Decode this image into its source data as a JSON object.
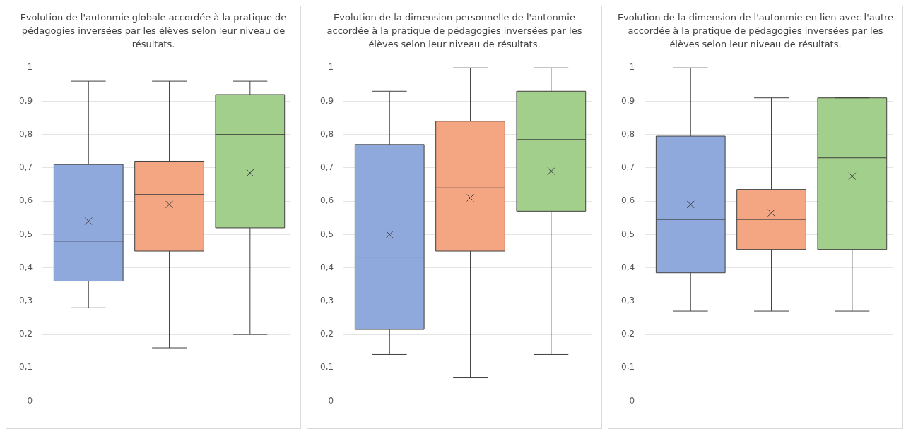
{
  "chart_data": [
    {
      "type": "box",
      "title": "Evolution de l'autonmie globale accordée à la pratique de pédagogies inversées par les élèves selon leur niveau de résultats.",
      "categories": [
        null,
        null,
        null
      ],
      "colors": [
        "#8fa9dd",
        "#f4a582",
        "#a3cf8c"
      ],
      "boxes": [
        {
          "low": 0.28,
          "q1": 0.36,
          "median": 0.48,
          "q3": 0.71,
          "high": 0.96,
          "mean": 0.54
        },
        {
          "low": 0.16,
          "q1": 0.45,
          "median": 0.62,
          "q3": 0.72,
          "high": 0.96,
          "mean": 0.59
        },
        {
          "low": 0.2,
          "q1": 0.52,
          "median": 0.8,
          "q3": 0.92,
          "high": 0.96,
          "mean": 0.685
        }
      ],
      "ylim": [
        0,
        1
      ],
      "yticks": [
        {
          "value": 0,
          "label": "0"
        },
        {
          "value": 0.1,
          "label": "0,1"
        },
        {
          "value": 0.2,
          "label": "0,2"
        },
        {
          "value": 0.3,
          "label": "0,3"
        },
        {
          "value": 0.4,
          "label": "0,4"
        },
        {
          "value": 0.5,
          "label": "0,5"
        },
        {
          "value": 0.6,
          "label": "0,6"
        },
        {
          "value": 0.7,
          "label": "0,7"
        },
        {
          "value": 0.8,
          "label": "0,8"
        },
        {
          "value": 0.9,
          "label": "0,9"
        },
        {
          "value": 1,
          "label": "1"
        }
      ],
      "grid": "y"
    },
    {
      "type": "box",
      "title": "Evolution de la dimension personnelle de l'autonmie accordée à la pratique de pédagogies inversées par les élèves selon leur niveau de résultats.",
      "categories": [
        null,
        null,
        null
      ],
      "colors": [
        "#8fa9dd",
        "#f4a582",
        "#a3cf8c"
      ],
      "boxes": [
        {
          "low": 0.14,
          "q1": 0.215,
          "median": 0.43,
          "q3": 0.77,
          "high": 0.93,
          "mean": 0.5
        },
        {
          "low": 0.07,
          "q1": 0.45,
          "median": 0.64,
          "q3": 0.84,
          "high": 1,
          "mean": 0.61
        },
        {
          "low": 0.14,
          "q1": 0.57,
          "median": 0.785,
          "q3": 0.93,
          "high": 1,
          "mean": 0.69
        }
      ],
      "ylim": [
        0,
        1
      ],
      "yticks": [
        {
          "value": 0,
          "label": "0"
        },
        {
          "value": 0.1,
          "label": "0,1"
        },
        {
          "value": 0.2,
          "label": "0,2"
        },
        {
          "value": 0.3,
          "label": "0,3"
        },
        {
          "value": 0.4,
          "label": "0,4"
        },
        {
          "value": 0.5,
          "label": "0,5"
        },
        {
          "value": 0.6,
          "label": "0,6"
        },
        {
          "value": 0.7,
          "label": "0,7"
        },
        {
          "value": 0.8,
          "label": "0,8"
        },
        {
          "value": 0.9,
          "label": "0,9"
        },
        {
          "value": 1,
          "label": "1"
        }
      ],
      "grid": "y"
    },
    {
      "type": "box",
      "title": "Evolution de la dimension de l'autonmie en lien avec l'autre accordée à la pratique de pédagogies inversées par les élèves selon leur niveau de résultats.",
      "categories": [
        null,
        null,
        null
      ],
      "colors": [
        "#8fa9dd",
        "#f4a582",
        "#a3cf8c"
      ],
      "boxes": [
        {
          "low": 0.27,
          "q1": 0.385,
          "median": 0.545,
          "q3": 0.795,
          "high": 1,
          "mean": 0.59
        },
        {
          "low": 0.27,
          "q1": 0.455,
          "median": 0.545,
          "q3": 0.635,
          "high": 0.91,
          "mean": 0.565
        },
        {
          "low": 0.27,
          "q1": 0.455,
          "median": 0.73,
          "q3": 0.91,
          "high": 0.91,
          "mean": 0.675
        }
      ],
      "ylim": [
        0,
        1
      ],
      "yticks": [
        {
          "value": 0,
          "label": "0"
        },
        {
          "value": 0.1,
          "label": "0,1"
        },
        {
          "value": 0.2,
          "label": "0,2"
        },
        {
          "value": 0.3,
          "label": "0,3"
        },
        {
          "value": 0.4,
          "label": "0,4"
        },
        {
          "value": 0.5,
          "label": "0,5"
        },
        {
          "value": 0.6,
          "label": "0,6"
        },
        {
          "value": 0.7,
          "label": "0,7"
        },
        {
          "value": 0.8,
          "label": "0,8"
        },
        {
          "value": 0.9,
          "label": "0,9"
        },
        {
          "value": 1,
          "label": "1"
        }
      ],
      "grid": "y"
    }
  ]
}
